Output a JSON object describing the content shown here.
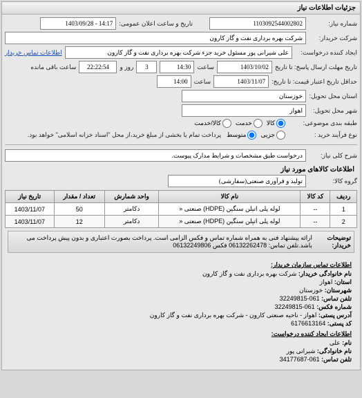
{
  "panel_title": "جزئیات اطلاعات نیاز",
  "fields": {
    "request_no_label": "شماره نیاز:",
    "request_no": "1103092544002802",
    "datetime_label": "تاریخ و ساعت اعلان عمومی:",
    "datetime": "14:17 - 1403/09/28",
    "buyer_label": "شرکت خریدار:",
    "buyer": "شرکت بهره برداری نفت و گاز کارون",
    "requester_label": "ایجاد کننده درخواست:",
    "requester": "علی شیرانی پور مسئول خرید جزء شرکت بهره برداری نفت و گاز کارون",
    "buyer_contact_link": "اطلاعات تماس خریدار",
    "deadline_label": "تاریخ مهلت ارسال پاسخ: تا تاریخ",
    "deadline_date": "1403/10/02",
    "time_label": "ساعت",
    "deadline_time": "14:30",
    "remain_days": "3",
    "day_and": "روز و",
    "remain_time": "22:22:54",
    "remain_suffix": "ساعت باقی مانده",
    "validity_label": "حداقل تاریخ اعتبار قیمت: تا تاریخ:",
    "validity_date": "1403/11/07",
    "validity_time": "14:00",
    "province_label": "استان محل تحویل:",
    "province": "خوزستان",
    "city_label": "شهر محل تحویل:",
    "city": "اهواز",
    "category_label": "طبقه بندی موضوعی:",
    "cat_goods": "کالا",
    "cat_service": "خدمت",
    "cat_goodsservice": "کالا/خدمت",
    "purchase_type_label": "نوع فرآیند خرید :",
    "pt_minor": "جزیی",
    "pt_medium": "متوسط",
    "pt_note": "پرداخت تمام یا بخشی از مبلغ خرید،از محل \"اسناد خزانه اسلامی\" خواهد بود.",
    "need_desc_label": "شرح کلی نیاز:",
    "need_desc": "درخواست طبق مشخصات و شرایط مدارک پیوست.",
    "items_title": "اطلاعات کالاهای مورد نیاز",
    "group_label": "گروه کالا:",
    "group": "تولید و فرآوری صنعتی(سفارشی)"
  },
  "table": {
    "headers": [
      "ردیف",
      "کد کالا",
      "نام کالا",
      "واحد شمارش",
      "تعداد / مقدار",
      "تاریخ نیاز"
    ],
    "rows": [
      [
        "1",
        "--",
        "لوله پلی اتیلن سنگین (HDPE) صنعتی «",
        "دکامتر",
        "50",
        "1403/11/07"
      ],
      [
        "2",
        "--",
        "لوله پلی اتیلن سنگین (HDPE) صنعتی «",
        "دکامتر",
        "12",
        "1403/11/07"
      ]
    ]
  },
  "desc": {
    "label": "توضیحات خریدار:",
    "text": "ارائه پیشنهاد فنی به همراه شماره تماس و فکس الزامی است. پرداخت بصورت اعتباری و بدون پیش پرداخت می باشد.تلفن تماس: 06132262478 فکس 06132249806"
  },
  "contact": {
    "org_title": "اطلاعات تماس سازمان خریدار:",
    "family_label": "نام خانوادگی خریدار:",
    "family": "شرکت بهره برداری نفت و گاز کارون",
    "province_label": "استان:",
    "province": "اهواز",
    "county_label": "شهرستان:",
    "county": "خوزستان",
    "phone_label": "تلفن تماس:",
    "phone": "061-32249815",
    "fax_label": "شماره فکس:",
    "fax": "061-32249815",
    "address_label": "آدرس پستی:",
    "address": "اهواز - ناحیه صنعتی کارون - شرکت بهره برداری نفت و گاز کارون",
    "postal_label": "کد پستی:",
    "postal": "6176613164",
    "req_contact_title": "اطلاعات ایجاد کننده درخواست:",
    "name_label": "نام:",
    "name": "علی",
    "req_family_label": "نام خانوادگی:",
    "req_family": "شیرانی پور",
    "req_phone_label": "تلفن تماس:",
    "req_phone": "061-34177687"
  }
}
